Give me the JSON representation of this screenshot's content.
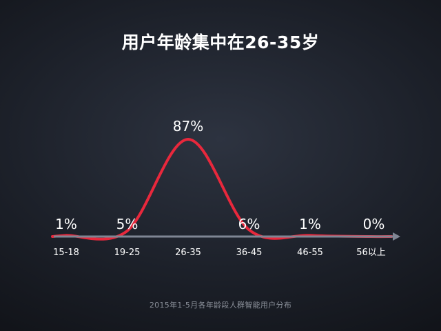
{
  "title": "用户年龄集中在26-35岁",
  "caption": "2015年1-5月各年龄段人群智能用户分布",
  "colors": {
    "curve": "#e8283c",
    "axis": "#7f8694",
    "text": "#ffffff",
    "caption": "#8a8f99"
  },
  "chart_data": {
    "type": "line",
    "title": "用户年龄集中在26-35岁",
    "xlabel": "",
    "ylabel": "",
    "categories": [
      "15-18",
      "19-25",
      "26-35",
      "36-45",
      "46-55",
      "56以上"
    ],
    "values": [
      1,
      5,
      87,
      6,
      1,
      0
    ],
    "value_labels": [
      "1%",
      "5%",
      "87%",
      "6%",
      "1%",
      "0%"
    ],
    "unit": "%",
    "ylim": [
      0,
      100
    ],
    "grid": false,
    "legend": "none",
    "curve_style": "smooth bell curve"
  }
}
